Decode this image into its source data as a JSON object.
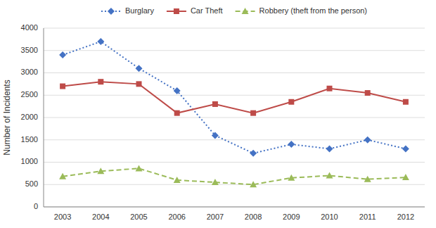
{
  "chart_data": {
    "type": "line",
    "categories": [
      2003,
      2004,
      2005,
      2006,
      2007,
      2008,
      2009,
      2010,
      2011,
      2012
    ],
    "series": [
      {
        "name": "Burglary",
        "color": "#4472C4",
        "marker": "diamond",
        "line_style": "dotted",
        "values": [
          3400,
          3700,
          3100,
          2600,
          1600,
          1200,
          1400,
          1300,
          1500,
          1300
        ]
      },
      {
        "name": "Car Theft",
        "color": "#BE4B48",
        "marker": "square",
        "line_style": "solid",
        "values": [
          2700,
          2800,
          2750,
          2100,
          2300,
          2100,
          2350,
          2650,
          2550,
          2350
        ]
      },
      {
        "name": "Robbery (theft from the person)",
        "color": "#9BBB59",
        "marker": "triangle",
        "line_style": "dashed",
        "values": [
          680,
          800,
          860,
          600,
          550,
          500,
          650,
          700,
          620,
          660
        ]
      }
    ],
    "ylabel": "Number of Incidents",
    "ylim": [
      0,
      4000
    ],
    "yticks": [
      0,
      500,
      1000,
      1500,
      2000,
      2500,
      3000,
      3500,
      4000
    ],
    "grid": true,
    "legend": "top"
  }
}
